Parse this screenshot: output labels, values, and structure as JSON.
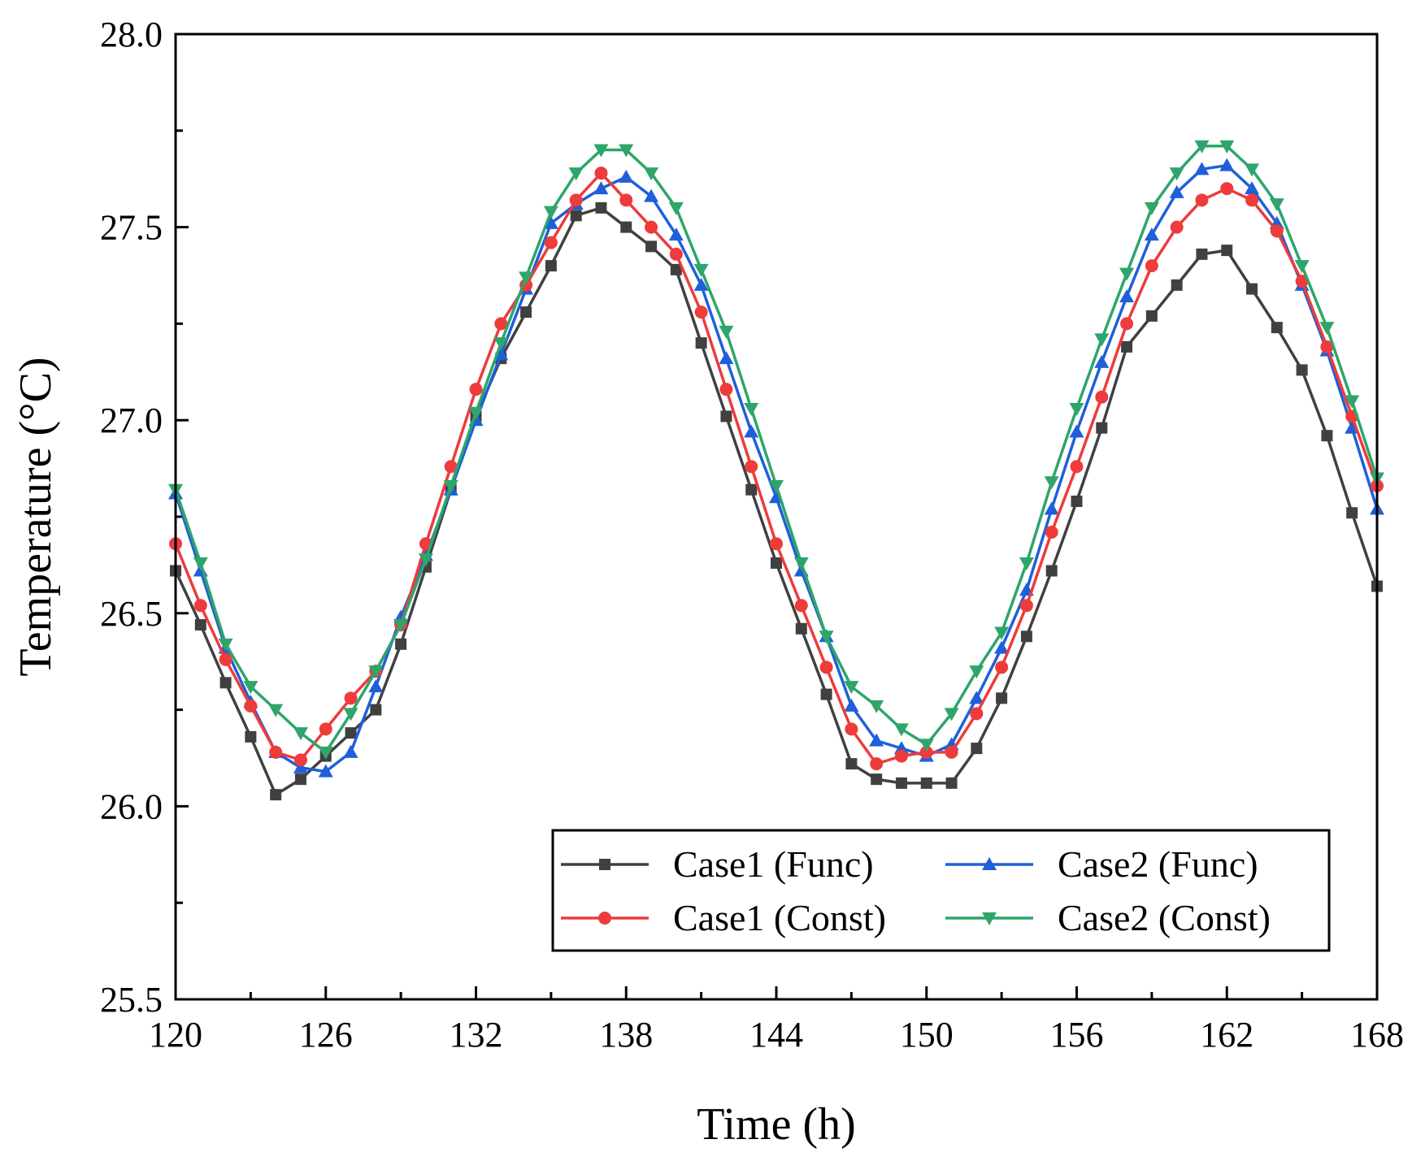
{
  "chart_data": {
    "type": "line",
    "title": "",
    "xlabel": "Time (h)",
    "ylabel": "Temperature (°C)",
    "xlim": [
      120,
      168
    ],
    "ylim": [
      25.5,
      28.0
    ],
    "xticks": [
      120,
      126,
      132,
      138,
      144,
      150,
      156,
      162,
      168
    ],
    "xtick_labels": [
      "120",
      "126",
      "132",
      "138",
      "144",
      "150",
      "156",
      "162",
      "168"
    ],
    "yticks": [
      25.5,
      26.0,
      26.5,
      27.0,
      27.5,
      28.0
    ],
    "ytick_labels": [
      "25.5",
      "26.0",
      "26.5",
      "27.0",
      "27.5",
      "28.0"
    ],
    "grid": false,
    "legend_position": "bottom-right",
    "x": [
      120,
      121,
      122,
      123,
      124,
      125,
      126,
      127,
      128,
      129,
      130,
      131,
      132,
      133,
      134,
      135,
      136,
      137,
      138,
      139,
      140,
      141,
      142,
      143,
      144,
      145,
      146,
      147,
      148,
      149,
      150,
      151,
      152,
      153,
      154,
      155,
      156,
      157,
      158,
      159,
      160,
      161,
      162,
      163,
      164,
      165,
      166,
      167,
      168
    ],
    "series": [
      {
        "name": "Case1 (Func)",
        "color": "#404040",
        "marker": "square",
        "values": [
          26.61,
          26.47,
          26.32,
          26.18,
          26.03,
          26.07,
          26.13,
          26.19,
          26.25,
          26.42,
          26.62,
          26.82,
          27.01,
          27.16,
          27.28,
          27.4,
          27.53,
          27.55,
          27.5,
          27.45,
          27.39,
          27.2,
          27.01,
          26.82,
          26.63,
          26.46,
          26.29,
          26.11,
          26.07,
          26.06,
          26.06,
          26.06,
          26.15,
          26.28,
          26.44,
          26.61,
          26.79,
          26.98,
          27.19,
          27.27,
          27.35,
          27.43,
          27.44,
          27.34,
          27.24,
          27.13,
          26.96,
          26.76,
          26.57
        ]
      },
      {
        "name": "Case2 (Func)",
        "color": "#1f5fd9",
        "marker": "triangle-up",
        "values": [
          26.81,
          26.61,
          26.41,
          26.27,
          26.14,
          26.1,
          26.09,
          26.14,
          26.31,
          26.49,
          26.65,
          26.82,
          27.0,
          27.17,
          27.34,
          27.51,
          27.56,
          27.6,
          27.63,
          27.58,
          27.48,
          27.35,
          27.16,
          26.97,
          26.8,
          26.61,
          26.44,
          26.26,
          26.17,
          26.15,
          26.13,
          26.16,
          26.28,
          26.41,
          26.56,
          26.77,
          26.97,
          27.15,
          27.32,
          27.48,
          27.59,
          27.65,
          27.66,
          27.6,
          27.51,
          27.35,
          27.18,
          26.98,
          26.77
        ]
      },
      {
        "name": "Case1 (Const)",
        "color": "#ee3b3b",
        "marker": "circle",
        "values": [
          26.68,
          26.52,
          26.38,
          26.26,
          26.14,
          26.12,
          26.2,
          26.28,
          26.35,
          26.47,
          26.68,
          26.88,
          27.08,
          27.25,
          27.35,
          27.46,
          27.57,
          27.64,
          27.57,
          27.5,
          27.43,
          27.28,
          27.08,
          26.88,
          26.68,
          26.52,
          26.36,
          26.2,
          26.11,
          26.13,
          26.14,
          26.14,
          26.24,
          26.36,
          26.52,
          26.71,
          26.88,
          27.06,
          27.25,
          27.4,
          27.5,
          27.57,
          27.6,
          27.57,
          27.49,
          27.36,
          27.19,
          27.01,
          26.83
        ]
      },
      {
        "name": "Case2 (Const)",
        "color": "#2ea56a",
        "marker": "triangle-down",
        "values": [
          26.82,
          26.63,
          26.42,
          26.31,
          26.25,
          26.19,
          26.14,
          26.24,
          26.35,
          26.47,
          26.64,
          26.83,
          27.02,
          27.2,
          27.37,
          27.54,
          27.64,
          27.7,
          27.7,
          27.64,
          27.55,
          27.39,
          27.23,
          27.03,
          26.83,
          26.63,
          26.44,
          26.31,
          26.26,
          26.2,
          26.16,
          26.24,
          26.35,
          26.45,
          26.63,
          26.84,
          27.03,
          27.21,
          27.38,
          27.55,
          27.64,
          27.71,
          27.71,
          27.65,
          27.56,
          27.4,
          27.24,
          27.05,
          26.85
        ]
      }
    ]
  }
}
